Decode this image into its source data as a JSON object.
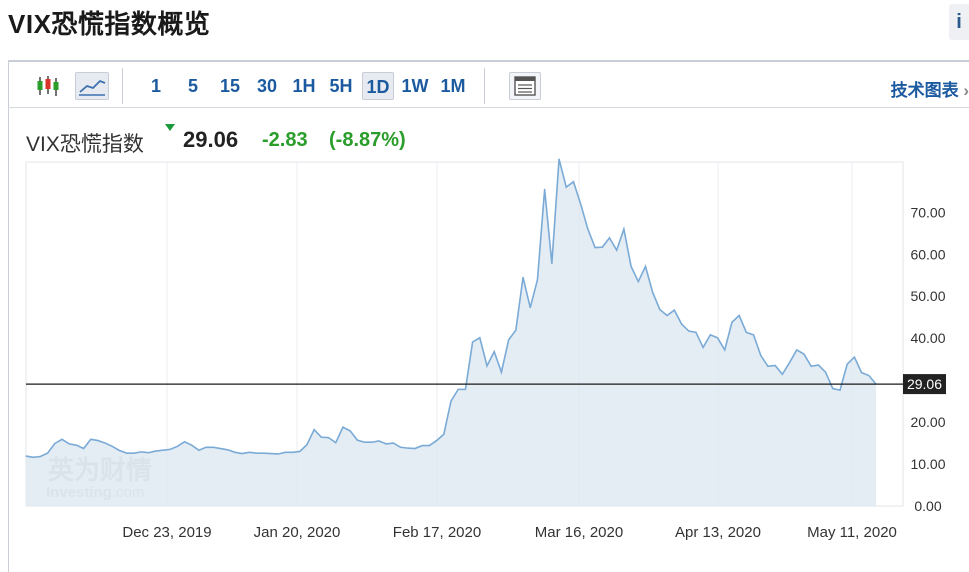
{
  "page": {
    "title": "VIX恐慌指数概览",
    "info_icon": "i"
  },
  "toolbar": {
    "candlestick_icon": "candlestick-chart-icon",
    "line_icon": "line-chart-icon",
    "timeframes": [
      "1",
      "5",
      "15",
      "30",
      "1H",
      "5H",
      "1D",
      "1W",
      "1M"
    ],
    "active_timeframe": "1D",
    "table_icon": "table-view-icon",
    "tech_chart_label": "技术图表",
    "tech_chart_arrow": "›"
  },
  "quote": {
    "name": "VIX恐慌指数",
    "last": "29.06",
    "change": "-2.83",
    "change_pct": "(-8.87%)",
    "down_color": "#2a9d2a"
  },
  "watermark": {
    "cn": "英为财情",
    "en": "Investing",
    "en_suffix": ".com"
  },
  "chart_data": {
    "type": "area",
    "x_labels": [
      "Dec 23, 2019",
      "Jan 20, 2020",
      "Feb 17, 2020",
      "Mar 16, 2020",
      "Apr 13, 2020",
      "May 11, 2020"
    ],
    "y_ticks": [
      "0.00",
      "10.00",
      "20.00",
      "30.00",
      "40.00",
      "50.00",
      "60.00",
      "70.00"
    ],
    "ylim": [
      0,
      82
    ],
    "last_value": 29.06,
    "last_label": "29.06",
    "line_color": "#7aaad6",
    "fill_color": "#dfe9f2",
    "values": [
      11.9,
      11.6,
      11.8,
      12.6,
      14.9,
      15.9,
      14.8,
      14.5,
      13.7,
      15.9,
      15.6,
      15.0,
      14.2,
      13.2,
      12.6,
      12.6,
      12.9,
      12.7,
      13.1,
      13.3,
      13.5,
      14.2,
      15.3,
      14.5,
      13.3,
      14.0,
      14.0,
      13.7,
      13.4,
      12.8,
      12.5,
      12.8,
      12.6,
      12.6,
      12.5,
      12.4,
      12.8,
      12.8,
      13.0,
      14.6,
      18.2,
      16.4,
      16.3,
      15.1,
      18.8,
      17.9,
      15.7,
      15.2,
      15.2,
      15.5,
      14.8,
      15.0,
      14.0,
      13.8,
      13.7,
      14.4,
      14.4,
      15.6,
      17.1,
      25.0,
      27.8,
      27.8,
      39.1,
      40.1,
      33.4,
      36.8,
      31.9,
      39.6,
      41.9,
      54.5,
      47.3,
      53.9,
      75.5,
      57.8,
      82.7,
      76.0,
      77.3,
      72.0,
      66.0,
      61.6,
      61.7,
      63.9,
      61.0,
      66.0,
      57.1,
      53.5,
      57.1,
      50.9,
      46.8,
      45.4,
      46.7,
      43.4,
      41.7,
      41.4,
      37.8,
      40.8,
      40.1,
      37.2,
      43.8,
      45.4,
      41.4,
      40.8,
      35.9,
      33.3,
      33.5,
      31.4,
      34.2,
      37.2,
      36.2,
      33.3,
      33.6,
      31.9,
      28.0,
      27.6,
      33.8,
      35.5,
      31.8,
      31.1,
      29.06
    ],
    "grid": "vertical",
    "legend": "none"
  }
}
